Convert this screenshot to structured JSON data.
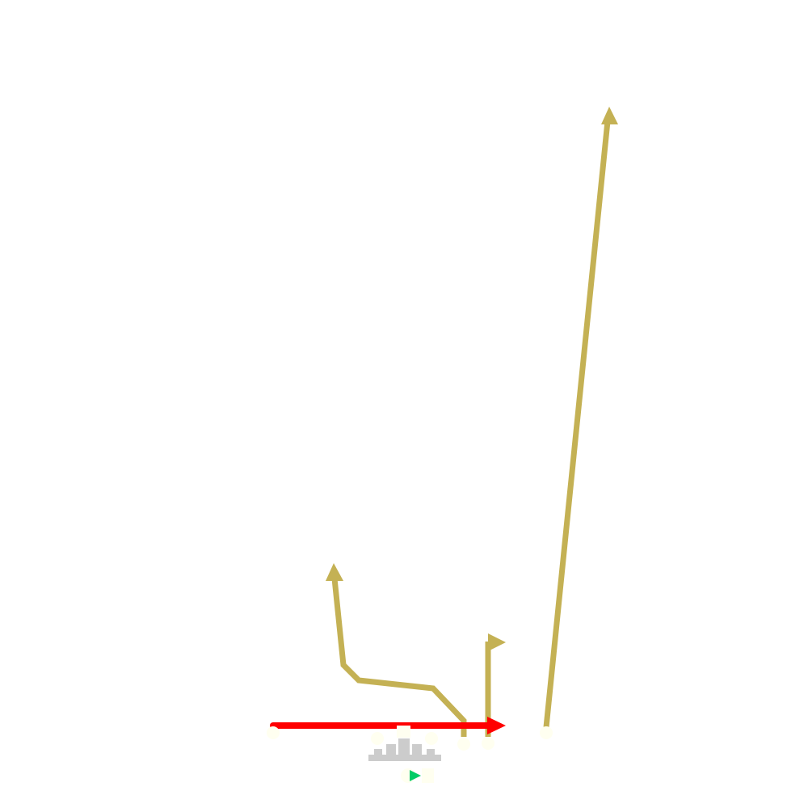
{
  "diagram": {
    "type": "football-play",
    "colors": {
      "background": "#ffffff",
      "route": "#c4b154",
      "motion": "#ff0000",
      "player": "#fffff0",
      "line": "#cccccc",
      "ball_carrier": "#00cc66"
    },
    "players": [
      {
        "id": "receiver-left",
        "role": "receiver"
      },
      {
        "id": "lineman-1",
        "role": "lineman"
      },
      {
        "id": "center",
        "role": "center"
      },
      {
        "id": "lineman-5",
        "role": "lineman"
      },
      {
        "id": "slot-a",
        "role": "receiver"
      },
      {
        "id": "slot-b",
        "role": "receiver"
      },
      {
        "id": "receiver-right",
        "role": "receiver"
      },
      {
        "id": "quarterback",
        "role": "quarterback"
      }
    ],
    "routes": [
      {
        "id": "route-post",
        "kind": "deep"
      },
      {
        "id": "route-out",
        "kind": "short"
      },
      {
        "id": "route-corner",
        "kind": "crossing"
      }
    ],
    "motion": {
      "id": "motion-path",
      "kind": "pre-snap motion"
    }
  }
}
